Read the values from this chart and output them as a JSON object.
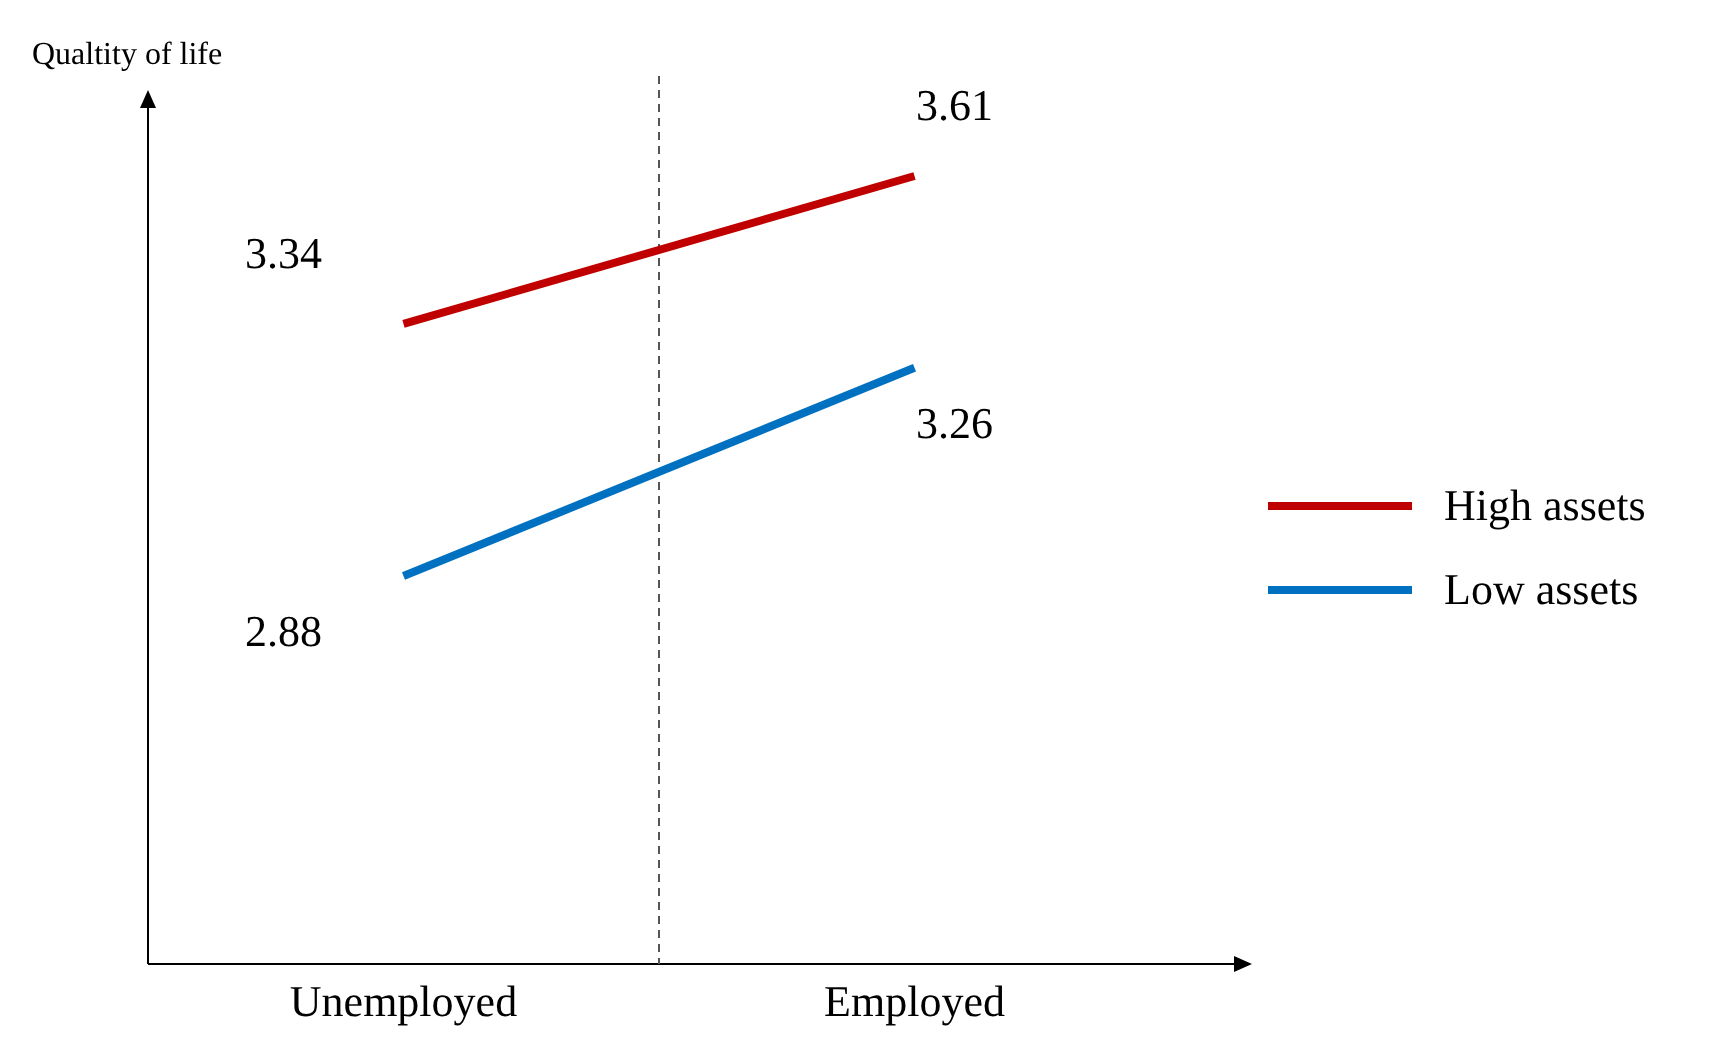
{
  "chart_data": {
    "type": "line",
    "ylabel": "Qualtity of life",
    "categories": [
      "Unemployed",
      "Employed"
    ],
    "series": [
      {
        "name": "High assets",
        "color": "#c00000",
        "values": [
          3.34,
          3.61
        ]
      },
      {
        "name": "Low assets",
        "color": "#0070c0",
        "values": [
          2.88,
          3.26
        ]
      }
    ],
    "data_labels": true,
    "legend": "right",
    "marker": "none"
  }
}
